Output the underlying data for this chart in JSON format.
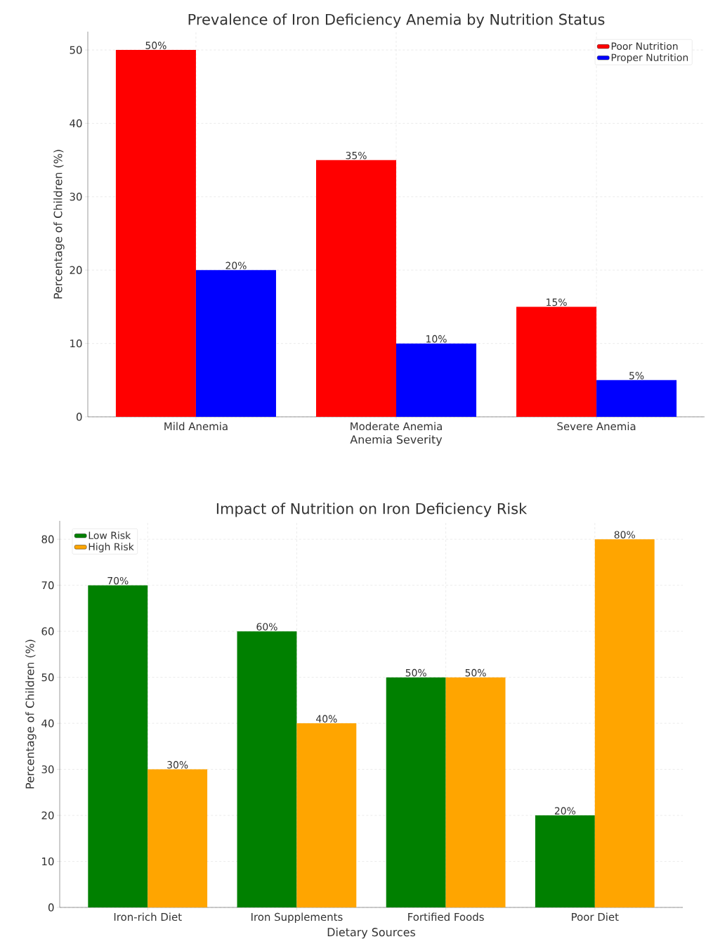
{
  "chart_data": [
    {
      "type": "bar",
      "title": "Prevalence of Iron Deficiency Anemia by Nutrition Status",
      "xlabel": "Anemia Severity",
      "ylabel": "Percentage of Children (%)",
      "categories": [
        "Mild Anemia",
        "Moderate Anemia",
        "Severe Anemia"
      ],
      "series": [
        {
          "name": "Poor Nutrition",
          "color": "#ff0000",
          "values": [
            50,
            35,
            15
          ],
          "value_labels": [
            "50%",
            "35%",
            "15%"
          ]
        },
        {
          "name": "Proper Nutrition",
          "color": "#0000ff",
          "values": [
            20,
            10,
            5
          ],
          "value_labels": [
            "20%",
            "10%",
            "5%"
          ]
        }
      ],
      "ylim": [
        0,
        52.5
      ],
      "yticks": [
        0,
        10,
        20,
        30,
        40,
        50
      ],
      "grid": true,
      "legend": "top right"
    },
    {
      "type": "bar",
      "title": "Impact of Nutrition on Iron Deficiency Risk",
      "xlabel": "Dietary Sources",
      "ylabel": "Percentage of Children (%)",
      "categories": [
        "Iron-rich Diet",
        "Iron Supplements",
        "Fortified Foods",
        "Poor Diet"
      ],
      "series": [
        {
          "name": "Low Risk",
          "color": "#008000",
          "values": [
            70,
            60,
            50,
            20
          ],
          "value_labels": [
            "70%",
            "60%",
            "50%",
            "20%"
          ]
        },
        {
          "name": "High Risk",
          "color": "#ffa500",
          "values": [
            30,
            40,
            50,
            80
          ],
          "value_labels": [
            "30%",
            "40%",
            "50%",
            "80%"
          ]
        }
      ],
      "ylim": [
        0,
        84
      ],
      "yticks": [
        0,
        10,
        20,
        30,
        40,
        50,
        60,
        70,
        80
      ],
      "grid": true,
      "legend": "top left"
    }
  ]
}
